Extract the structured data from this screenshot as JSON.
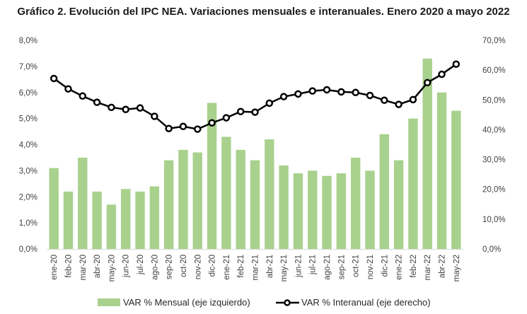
{
  "chart_data": {
    "type": "bar+line",
    "title": "Gráfico 2. Evolución del IPC NEA. Variaciones mensuales e interanuales. Enero 2020 a mayo 2022",
    "categories": [
      "ene-20",
      "feb-20",
      "mar-20",
      "abr-20",
      "may-20",
      "jun-20",
      "jul-20",
      "ago-20",
      "sep-20",
      "oct-20",
      "nov-20",
      "dic-20",
      "ene-21",
      "feb-21",
      "mar-21",
      "abr-21",
      "may-21",
      "jun-21",
      "jul-21",
      "ago-21",
      "sep-21",
      "oct-21",
      "nov-21",
      "dic-21",
      "ene-22",
      "feb-22",
      "mar-22",
      "abr-22",
      "may-22"
    ],
    "series": [
      {
        "name": "VAR % Mensual (eje izquierdo)",
        "type": "bar",
        "axis": "left",
        "color": "#a9d18e",
        "values": [
          3.1,
          2.2,
          3.5,
          2.2,
          1.7,
          2.3,
          2.2,
          2.4,
          3.4,
          3.8,
          3.7,
          5.6,
          4.3,
          3.8,
          3.4,
          4.2,
          3.2,
          2.9,
          3.0,
          2.8,
          2.9,
          3.5,
          3.0,
          4.4,
          3.4,
          5.0,
          7.3,
          6.0,
          5.3
        ]
      },
      {
        "name": "VAR % Interanual (eje derecho)",
        "type": "line",
        "axis": "right",
        "color": "#000000",
        "values": [
          57.2,
          53.7,
          51.3,
          49.2,
          47.5,
          46.8,
          47.3,
          44.5,
          40.4,
          41.1,
          40.2,
          42.3,
          44.0,
          46.1,
          45.9,
          48.9,
          51.1,
          52.0,
          53.0,
          53.4,
          52.7,
          52.5,
          51.5,
          49.9,
          48.5,
          50.1,
          55.8,
          58.6,
          62.0
        ]
      }
    ],
    "y_left": {
      "ylim": [
        0,
        8
      ],
      "ticks": [
        "0,0%",
        "1,0%",
        "2,0%",
        "3,0%",
        "4,0%",
        "5,0%",
        "6,0%",
        "7,0%",
        "8,0%"
      ]
    },
    "y_right": {
      "ylim": [
        0,
        70
      ],
      "ticks": [
        "0,0%",
        "10,0%",
        "20,0%",
        "30,0%",
        "40,0%",
        "50,0%",
        "60,0%",
        "70,0%"
      ]
    },
    "xlabel": "",
    "grid": false,
    "legend": "bottom"
  }
}
